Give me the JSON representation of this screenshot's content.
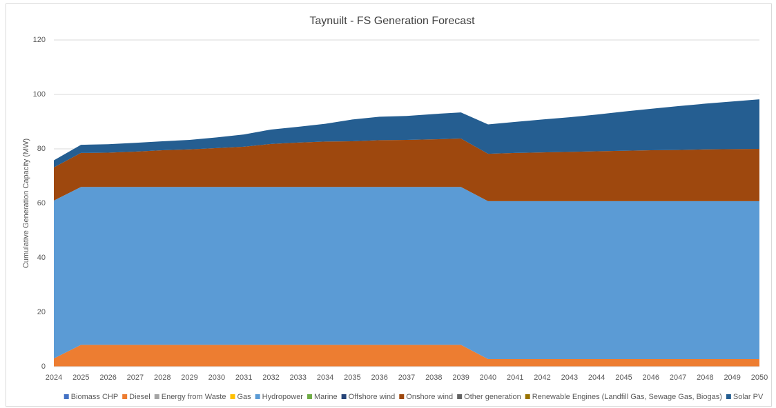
{
  "chart_data": {
    "type": "stacked_area",
    "title": "Taynuilt - FS Generation Forecast",
    "y_label": "Cumulative Generation Capacity (MW)",
    "x": [
      2024,
      2025,
      2026,
      2027,
      2028,
      2029,
      2030,
      2031,
      2032,
      2033,
      2034,
      2035,
      2036,
      2037,
      2038,
      2039,
      2040,
      2041,
      2042,
      2043,
      2044,
      2045,
      2046,
      2047,
      2048,
      2049,
      2050
    ],
    "xlim": [
      2024,
      2050
    ],
    "ylim": [
      0,
      120
    ],
    "yticks": [
      0,
      20,
      40,
      60,
      80,
      100,
      120
    ],
    "grid": true,
    "legend": "bottom",
    "series": [
      {
        "name": "Biomass CHP",
        "color": "#4472c4",
        "values": [
          0,
          0,
          0,
          0,
          0,
          0,
          0,
          0,
          0,
          0,
          0,
          0,
          0,
          0,
          0,
          0,
          0,
          0,
          0,
          0,
          0,
          0,
          0,
          0,
          0,
          0,
          0
        ]
      },
      {
        "name": "Diesel",
        "color": "#ed7d31",
        "values": [
          3,
          8,
          8,
          8,
          8,
          8,
          8,
          8,
          8,
          8,
          8,
          8,
          8,
          8,
          8,
          8,
          2.8,
          2.8,
          2.8,
          2.8,
          2.8,
          2.8,
          2.8,
          2.8,
          2.8,
          2.8,
          2.8
        ]
      },
      {
        "name": "Energy from Waste",
        "color": "#a5a5a5",
        "values": [
          0,
          0,
          0,
          0,
          0,
          0,
          0,
          0,
          0,
          0,
          0,
          0,
          0,
          0,
          0,
          0,
          0,
          0,
          0,
          0,
          0,
          0,
          0,
          0,
          0,
          0,
          0
        ]
      },
      {
        "name": "Gas",
        "color": "#ffc000",
        "values": [
          0,
          0,
          0,
          0,
          0,
          0,
          0,
          0,
          0,
          0,
          0,
          0,
          0,
          0,
          0,
          0,
          0,
          0,
          0,
          0,
          0,
          0,
          0,
          0,
          0,
          0,
          0
        ]
      },
      {
        "name": "Hydropower",
        "color": "#5b9bd5",
        "values": [
          58,
          58,
          58,
          58,
          58,
          58,
          58,
          58,
          58,
          58,
          58,
          58,
          58,
          58,
          58,
          58,
          58,
          58,
          58,
          58,
          58,
          58,
          58,
          58,
          58,
          58,
          58
        ]
      },
      {
        "name": "Marine",
        "color": "#70ad47",
        "values": [
          0,
          0,
          0,
          0,
          0,
          0,
          0,
          0,
          0,
          0,
          0,
          0,
          0,
          0,
          0,
          0,
          0,
          0,
          0,
          0,
          0,
          0,
          0,
          0,
          0,
          0,
          0
        ]
      },
      {
        "name": "Offshore wind",
        "color": "#264478",
        "values": [
          0,
          0,
          0,
          0,
          0,
          0,
          0,
          0,
          0,
          0,
          0,
          0,
          0,
          0,
          0,
          0,
          0,
          0,
          0,
          0,
          0,
          0,
          0,
          0,
          0,
          0,
          0
        ]
      },
      {
        "name": "Onshore wind",
        "color": "#9e480e",
        "values": [
          12.2,
          12.5,
          12.6,
          13,
          13.5,
          13.8,
          14.3,
          14.8,
          15.8,
          16.3,
          16.7,
          16.8,
          17.2,
          17.3,
          17.5,
          17.8,
          17.4,
          17.7,
          17.9,
          18.1,
          18.3,
          18.5,
          18.7,
          18.8,
          19,
          19.1,
          19.2
        ]
      },
      {
        "name": "Other generation",
        "color": "#636363",
        "values": [
          0,
          0,
          0,
          0,
          0,
          0,
          0,
          0,
          0,
          0,
          0,
          0,
          0,
          0,
          0,
          0,
          0,
          0,
          0,
          0,
          0,
          0,
          0,
          0,
          0,
          0,
          0
        ]
      },
      {
        "name": "Renewable Engines (Landfill Gas, Sewage Gas, Biogas)",
        "color": "#997300",
        "values": [
          0,
          0,
          0,
          0,
          0,
          0,
          0,
          0,
          0,
          0,
          0,
          0,
          0,
          0,
          0,
          0,
          0,
          0,
          0,
          0,
          0,
          0,
          0,
          0,
          0,
          0,
          0
        ]
      },
      {
        "name": "Solar PV",
        "color": "#255e91",
        "values": [
          2.6,
          3,
          3.1,
          3.2,
          3.3,
          3.5,
          3.9,
          4.5,
          5.3,
          5.8,
          6.5,
          8,
          8.6,
          8.8,
          9.3,
          9.6,
          10.8,
          11.4,
          12.1,
          12.7,
          13.5,
          14.4,
          15.2,
          16.1,
          16.8,
          17.5,
          18.2
        ]
      }
    ]
  }
}
